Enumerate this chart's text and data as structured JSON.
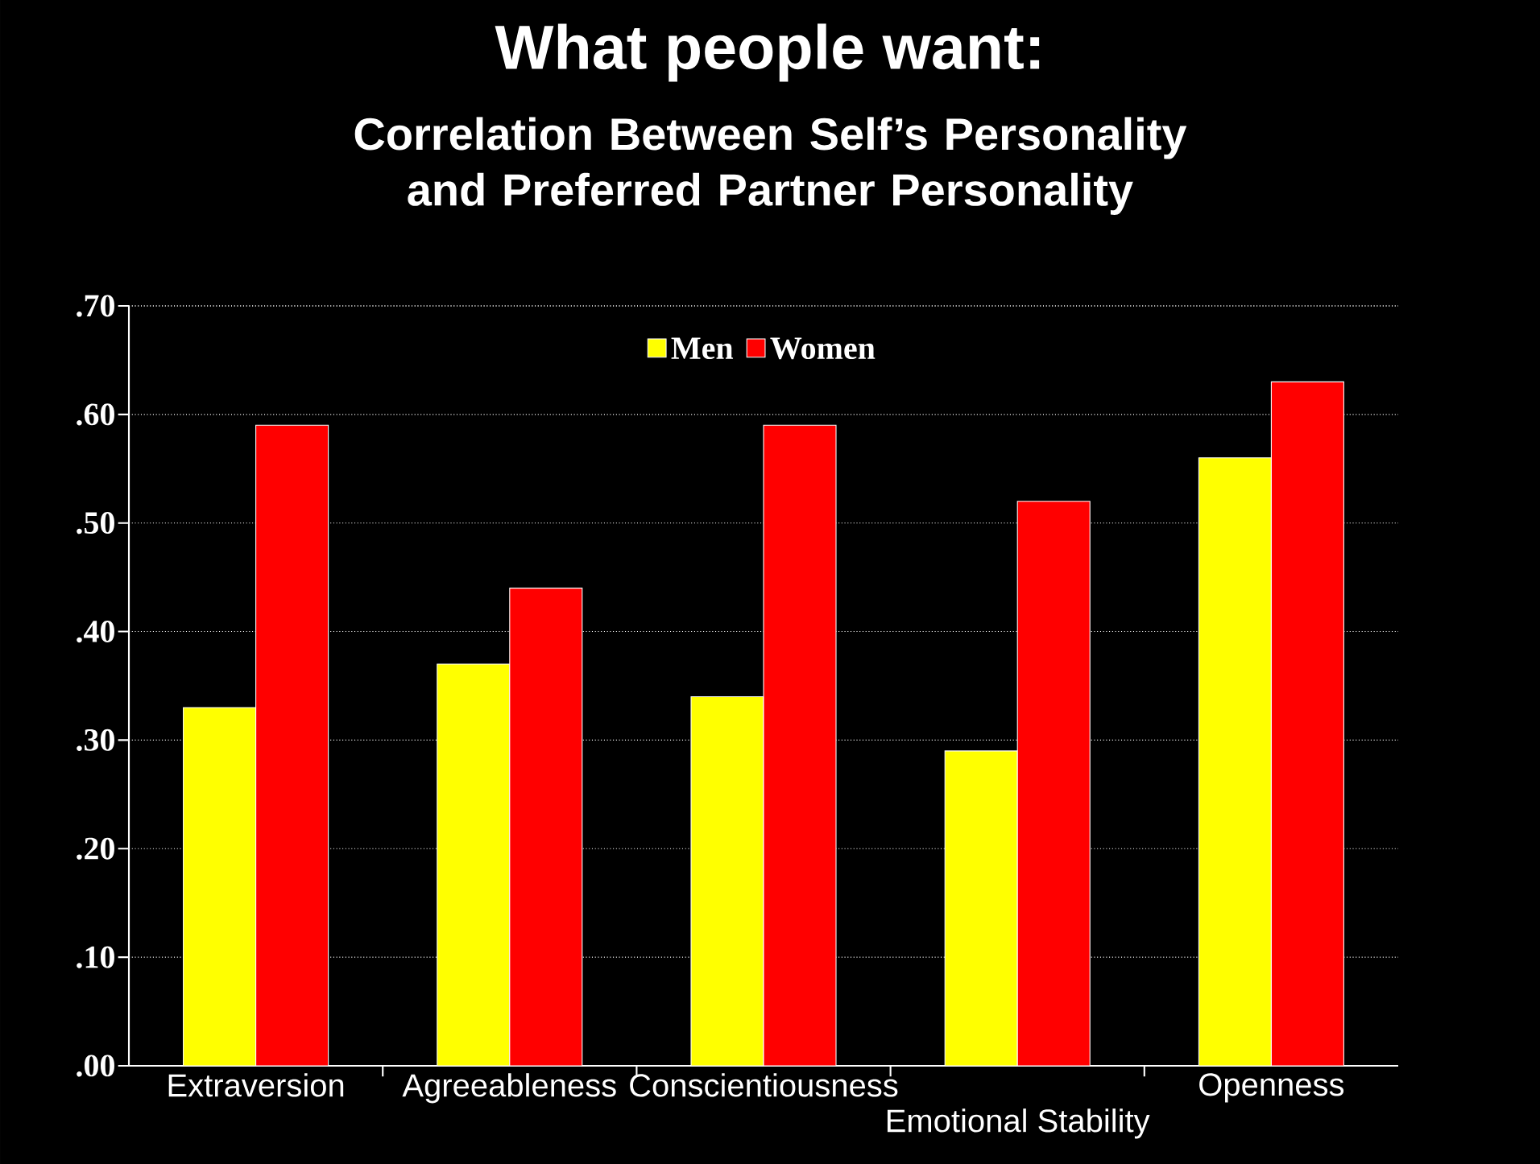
{
  "chart_data": {
    "type": "bar",
    "title": "What people want:",
    "subtitle": "Correlation Between Self’s Personality and Preferred Partner Personality",
    "categories": [
      "Extraversion",
      "Agreeableness",
      "Conscientiousness",
      "Emotional Stability",
      "Openness"
    ],
    "series": [
      {
        "name": "Men",
        "color": "#ffff00",
        "values": [
          0.33,
          0.37,
          0.34,
          0.29,
          0.56
        ]
      },
      {
        "name": "Women",
        "color": "#ff0000",
        "values": [
          0.59,
          0.44,
          0.59,
          0.52,
          0.63
        ]
      }
    ],
    "ylim": [
      0,
      0.7
    ],
    "yticks": [
      {
        "value": 0,
        "label": ".00"
      },
      {
        "value": 0.1,
        "label": ".10"
      },
      {
        "value": 0.2,
        "label": ".20"
      },
      {
        "value": 0.3,
        "label": ".30"
      },
      {
        "value": 0.4,
        "label": ".40"
      },
      {
        "value": 0.5,
        "label": ".50"
      },
      {
        "value": 0.6,
        "label": ".60"
      },
      {
        "value": 0.7,
        "label": ".70"
      }
    ],
    "grid": "y",
    "legend": "top"
  }
}
